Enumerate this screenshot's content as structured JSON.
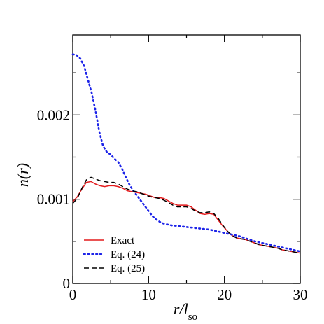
{
  "chart_data": {
    "type": "line",
    "xlabel": "r/l",
    "xlabel_sub": "so",
    "ylabel": "n(r)",
    "xlim": [
      0,
      30
    ],
    "ylim": [
      0,
      0.00295
    ],
    "grid": false,
    "legend_position": "bottom-left",
    "x_ticks": [
      {
        "value": 0,
        "label": "0"
      },
      {
        "value": 10,
        "label": "10"
      },
      {
        "value": 20,
        "label": "20"
      },
      {
        "value": 30,
        "label": "30"
      }
    ],
    "y_ticks": [
      {
        "value": 0,
        "label": "0"
      },
      {
        "value": 0.001,
        "label": "0.001"
      },
      {
        "value": 0.002,
        "label": "0.002"
      }
    ],
    "series": [
      {
        "name": "Exact",
        "color": "#e41a1c",
        "style": "solid",
        "points": [
          [
            0,
            0.00097
          ],
          [
            0.6,
            0.00103
          ],
          [
            1.2,
            0.00112
          ],
          [
            1.8,
            0.0012
          ],
          [
            2.4,
            0.00121
          ],
          [
            3,
            0.00118
          ],
          [
            3.6,
            0.00116
          ],
          [
            4.2,
            0.00115
          ],
          [
            4.8,
            0.00116
          ],
          [
            5.4,
            0.00116
          ],
          [
            6,
            0.00115
          ],
          [
            6.6,
            0.00113
          ],
          [
            7.2,
            0.0011
          ],
          [
            7.8,
            0.00109
          ],
          [
            8.4,
            0.00108
          ],
          [
            9,
            0.00107
          ],
          [
            9.6,
            0.00106
          ],
          [
            10.2,
            0.00104
          ],
          [
            10.8,
            0.00102
          ],
          [
            11.4,
            0.00102
          ],
          [
            12,
            0.00101
          ],
          [
            12.6,
            0.00098
          ],
          [
            13.2,
            0.00095
          ],
          [
            13.8,
            0.00093
          ],
          [
            14.4,
            0.00093
          ],
          [
            15,
            0.00093
          ],
          [
            15.6,
            0.00091
          ],
          [
            16.2,
            0.00087
          ],
          [
            16.8,
            0.00083
          ],
          [
            17.4,
            0.00082
          ],
          [
            18,
            0.00083
          ],
          [
            18.6,
            0.00082
          ],
          [
            19.2,
            0.00075
          ],
          [
            19.8,
            0.00068
          ],
          [
            20.4,
            0.00062
          ],
          [
            21,
            0.00057
          ],
          [
            21.6,
            0.00054
          ],
          [
            22.2,
            0.00053
          ],
          [
            22.8,
            0.00052
          ],
          [
            23.4,
            0.0005
          ],
          [
            24,
            0.00048
          ],
          [
            24.6,
            0.00046
          ],
          [
            25.2,
            0.00045
          ],
          [
            25.8,
            0.00044
          ],
          [
            26.4,
            0.00043
          ],
          [
            27,
            0.00042
          ],
          [
            27.6,
            0.0004
          ],
          [
            28.2,
            0.00039
          ],
          [
            28.8,
            0.00038
          ],
          [
            29.4,
            0.00037
          ],
          [
            30,
            0.00036
          ]
        ]
      },
      {
        "name": "Eq. (24)",
        "color": "#1c23e8",
        "style": "dotted",
        "points": [
          [
            0,
            0.00272
          ],
          [
            0.5,
            0.00271
          ],
          [
            1,
            0.00267
          ],
          [
            1.5,
            0.00258
          ],
          [
            2,
            0.00242
          ],
          [
            2.5,
            0.00226
          ],
          [
            3,
            0.00205
          ],
          [
            3.5,
            0.0018
          ],
          [
            4,
            0.00163
          ],
          [
            4.5,
            0.00156
          ],
          [
            5,
            0.00153
          ],
          [
            5.5,
            0.00148
          ],
          [
            6,
            0.00144
          ],
          [
            6.5,
            0.00136
          ],
          [
            7,
            0.00126
          ],
          [
            7.5,
            0.00117
          ],
          [
            8,
            0.0011
          ],
          [
            8.5,
            0.00104
          ],
          [
            9,
            0.00098
          ],
          [
            9.5,
            0.00092
          ],
          [
            10,
            0.00086
          ],
          [
            10.5,
            0.0008
          ],
          [
            11,
            0.00076
          ],
          [
            11.5,
            0.00073
          ],
          [
            12,
            0.00071
          ],
          [
            13,
            0.00069
          ],
          [
            14,
            0.00068
          ],
          [
            15,
            0.00067
          ],
          [
            16,
            0.00066
          ],
          [
            17,
            0.00065
          ],
          [
            18,
            0.00064
          ],
          [
            19,
            0.00062
          ],
          [
            20,
            0.0006
          ],
          [
            21,
            0.00058
          ],
          [
            22,
            0.00056
          ],
          [
            23,
            0.00053
          ],
          [
            24,
            0.0005
          ],
          [
            25,
            0.00048
          ],
          [
            26,
            0.00046
          ],
          [
            27,
            0.00044
          ],
          [
            28,
            0.00042
          ],
          [
            29,
            0.0004
          ],
          [
            30,
            0.00038
          ]
        ]
      },
      {
        "name": "Eq. (25)",
        "color": "#000000",
        "style": "dashed",
        "points": [
          [
            0,
            0.00095
          ],
          [
            0.6,
            0.00101
          ],
          [
            1.2,
            0.00113
          ],
          [
            1.8,
            0.00123
          ],
          [
            2.4,
            0.00126
          ],
          [
            3,
            0.00124
          ],
          [
            3.6,
            0.00122
          ],
          [
            4.2,
            0.00121
          ],
          [
            4.8,
            0.0012
          ],
          [
            5.4,
            0.0012
          ],
          [
            6,
            0.00118
          ],
          [
            6.6,
            0.00115
          ],
          [
            7.2,
            0.00112
          ],
          [
            7.8,
            0.0011
          ],
          [
            8.4,
            0.00109
          ],
          [
            9,
            0.00107
          ],
          [
            9.6,
            0.00105
          ],
          [
            10.2,
            0.00103
          ],
          [
            10.8,
            0.00102
          ],
          [
            11.4,
            0.00101
          ],
          [
            12,
            0.00099
          ],
          [
            12.6,
            0.00096
          ],
          [
            13.2,
            0.00093
          ],
          [
            13.8,
            0.00091
          ],
          [
            14.4,
            0.00091
          ],
          [
            15,
            0.00091
          ],
          [
            15.6,
            0.00089
          ],
          [
            16.2,
            0.00086
          ],
          [
            16.8,
            0.00084
          ],
          [
            17.4,
            0.00084
          ],
          [
            18,
            0.00085
          ],
          [
            18.6,
            0.00083
          ],
          [
            19.2,
            0.00077
          ],
          [
            19.8,
            0.00069
          ],
          [
            20.4,
            0.00062
          ],
          [
            21,
            0.00057
          ],
          [
            21.6,
            0.00054
          ],
          [
            22.2,
            0.00053
          ],
          [
            22.8,
            0.00052
          ],
          [
            23.4,
            0.0005
          ],
          [
            24,
            0.00048
          ],
          [
            24.6,
            0.00046
          ],
          [
            25.2,
            0.00045
          ],
          [
            25.8,
            0.00044
          ],
          [
            26.4,
            0.00043
          ],
          [
            27,
            0.00042
          ],
          [
            27.6,
            0.0004
          ],
          [
            28.2,
            0.00039
          ],
          [
            28.8,
            0.00038
          ],
          [
            29.4,
            0.00037
          ],
          [
            30,
            0.00036
          ]
        ]
      }
    ]
  }
}
